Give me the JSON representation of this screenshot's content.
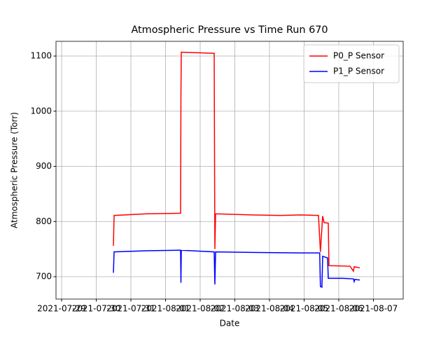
{
  "chart_data": {
    "type": "line",
    "title": "Atmospheric Pressure vs Time Run 670",
    "x_label": "Date",
    "y_label": "Atmospheric Pressure (Torr)",
    "xlim": [
      "2021-07-28T20:07",
      "2021-08-07T20:38"
    ],
    "xticks": [
      "2021-07-29",
      "2021-07-30",
      "2021-07-31",
      "2021-08-01",
      "2021-08-02",
      "2021-08-03",
      "2021-08-04",
      "2021-08-05",
      "2021-08-06",
      "2021-08-07"
    ],
    "ylim": [
      659.4,
      1126.7
    ],
    "yticks": [
      700,
      800,
      900,
      1000,
      1100
    ],
    "grid": true,
    "legend": "upper right",
    "series": [
      {
        "name": "P0_P Sensor",
        "color": "#ff0000",
        "x": [
          "2021-07-30T11:53",
          "2021-07-30T12:22",
          "2021-07-31T11:09",
          "2021-08-01T10:25",
          "2021-08-01T10:40",
          "2021-08-01T10:55",
          "2021-08-02T09:42",
          "2021-08-02T10:10",
          "2021-08-02T10:40",
          "2021-08-03T11:53",
          "2021-08-04T07:15",
          "2021-08-04T21:50",
          "2021-08-05T09:56",
          "2021-08-05T11:17",
          "2021-08-05T12:50",
          "2021-08-05T13:49",
          "2021-08-05T16:44",
          "2021-08-05T17:13",
          "2021-08-06T07:45",
          "2021-08-06T10:10",
          "2021-08-06T10:40",
          "2021-08-06T14:33"
        ],
        "values": [
          756,
          811,
          814,
          815,
          1030,
          1107,
          1105,
          750,
          814,
          812,
          811,
          812,
          811,
          745,
          810,
          798,
          797,
          720,
          719,
          710,
          718,
          716
        ]
      },
      {
        "name": "P1_P Sensor",
        "color": "#0000ff",
        "x": [
          "2021-07-30T11:53",
          "2021-07-30T12:22",
          "2021-07-31T11:09",
          "2021-08-01T10:25",
          "2021-08-01T10:40",
          "2021-08-01T10:55",
          "2021-08-02T09:42",
          "2021-08-02T10:10",
          "2021-08-02T10:40",
          "2021-08-03T11:53",
          "2021-08-04T21:50",
          "2021-08-05T10:47",
          "2021-08-05T11:17",
          "2021-08-05T12:20",
          "2021-08-05T12:50",
          "2021-08-05T16:15",
          "2021-08-05T16:44",
          "2021-08-06T02:55",
          "2021-08-06T10:10",
          "2021-08-06T10:40",
          "2021-08-06T11:09",
          "2021-08-06T14:33"
        ],
        "values": [
          707,
          745,
          747,
          748,
          689,
          748,
          745,
          686,
          745,
          744,
          743,
          743,
          682,
          681,
          737,
          734,
          697,
          697,
          696,
          691,
          695,
          694
        ]
      }
    ]
  }
}
